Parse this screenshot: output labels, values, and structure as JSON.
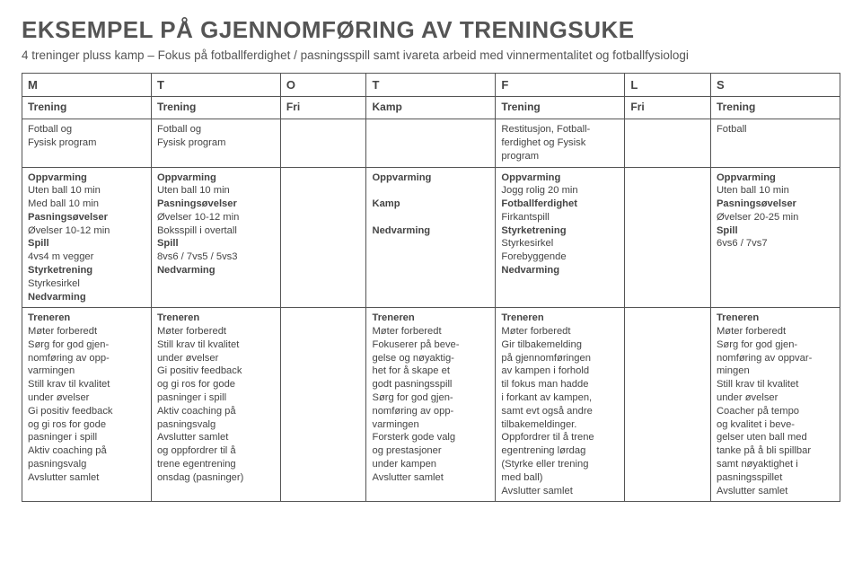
{
  "title": "EKSEMPEL PÅ GJENNOMFØRING AV TRENINGSUKE",
  "subtitle": "4 treninger pluss kamp – Fokus på fotballferdighet / pasningsspill samt ivareta arbeid med vinnermentalitet og fotballfysiologi",
  "days": [
    "M",
    "T",
    "O",
    "T",
    "F",
    "L",
    "S"
  ],
  "labels": [
    "Trening",
    "Trening",
    "Fri",
    "Kamp",
    "Trening",
    "Fri",
    "Trening"
  ],
  "row_desc": {
    "c0": "Fotball og\nFysisk program",
    "c1": "Fotball og\nFysisk program",
    "c2": "",
    "c3": "",
    "c4": "Restitusjon, Fotball-\nferdighet og Fysisk\nprogram",
    "c5": "",
    "c6": "Fotball"
  },
  "row_plan": {
    "c0": "<span class='b'>Oppvarming</span>\nUten ball 10 min\nMed ball 10 min\n<span class='b'>Pasningsøvelser</span>\nØvelser 10-12 min\n<span class='b'>Spill</span>\n4vs4 m vegger\n<span class='b'>Styrketrening</span>\nStyrkesirkel\n<span class='b'>Nedvarming</span>",
    "c1": "<span class='b'>Oppvarming</span>\nUten ball 10 min\n<span class='b'>Pasningsøvelser</span>\nØvelser 10-12 min\nBoksspill i overtall\n<span class='b'>Spill</span>\n 8vs6 / 7vs5 / 5vs3\n<span class='b'>Nedvarming</span>",
    "c2": "",
    "c3": "<span class='b'>Oppvarming</span>\n\n<span class='b'>Kamp</span>\n\n<span class='b'>Nedvarming</span>",
    "c4": "<span class='b'>Oppvarming</span>\nJogg rolig 20 min\n<span class='b'>Fotballferdighet</span>\nFirkantspill\n<span class='b'>Styrketrening</span>\nStyrkesirkel\nForebyggende\n<span class='b'>Nedvarming</span>",
    "c5": "",
    "c6": "<span class='b'>Oppvarming</span>\nUten ball 10 min\n<span class='b'>Pasningsøvelser</span>\nØvelser 20-25 min\n<span class='b'>Spill</span>\n6vs6 / 7vs7"
  },
  "row_coach": {
    "c0": "<span class='b'>Treneren</span>\nMøter forberedt\nSørg for god gjen-\nnomføring av opp-\nvarmingen\nStill krav til kvalitet\nunder øvelser\nGi positiv feedback\nog gi ros for gode\npasninger  i spill\nAktiv coaching på\npasningsvalg\nAvslutter samlet",
    "c1": "<span class='b'>Treneren</span>\nMøter forberedt\nStill krav til kvalitet\nunder øvelser\nGi positiv feedback\nog gi ros for gode\npasninger i spill\nAktiv coaching på\npasningsvalg\nAvslutter samlet\nog oppfordrer til å\ntrene egentrening\nonsdag (pasninger)",
    "c2": "",
    "c3": "<span class='b'>Treneren</span>\nMøter forberedt\nFokuserer på beve-\ngelse og nøyaktig-\nhet for å skape et\ngodt pasningsspill\nSørg for god gjen-\nnomføring av opp-\nvarmingen\nForsterk gode valg\nog prestasjoner\nunder kampen\nAvslutter samlet",
    "c4": "<span class='b'>Treneren</span>\nMøter forberedt\nGir tilbakemelding\npå gjennomføringen\nav kampen i forhold\ntil fokus man hadde\ni forkant av kampen,\nsamt evt også andre\ntilbakemeldinger.\nOppfordrer til å trene\negentrening lørdag\n(Styrke eller trening\nmed ball)\nAvslutter samlet",
    "c5": "",
    "c6": "<span class='b'>Treneren</span>\nMøter forberedt\nSørg for god gjen-\nnomføring av oppvar-\nmingen\nStill krav til kvalitet\nunder øvelser\nCoacher på tempo\nog kvalitet i beve-\ngelser uten ball med\ntanke på å bli spillbar\nsamt nøyaktighet i\npasningsspillet\nAvslutter samlet"
  }
}
